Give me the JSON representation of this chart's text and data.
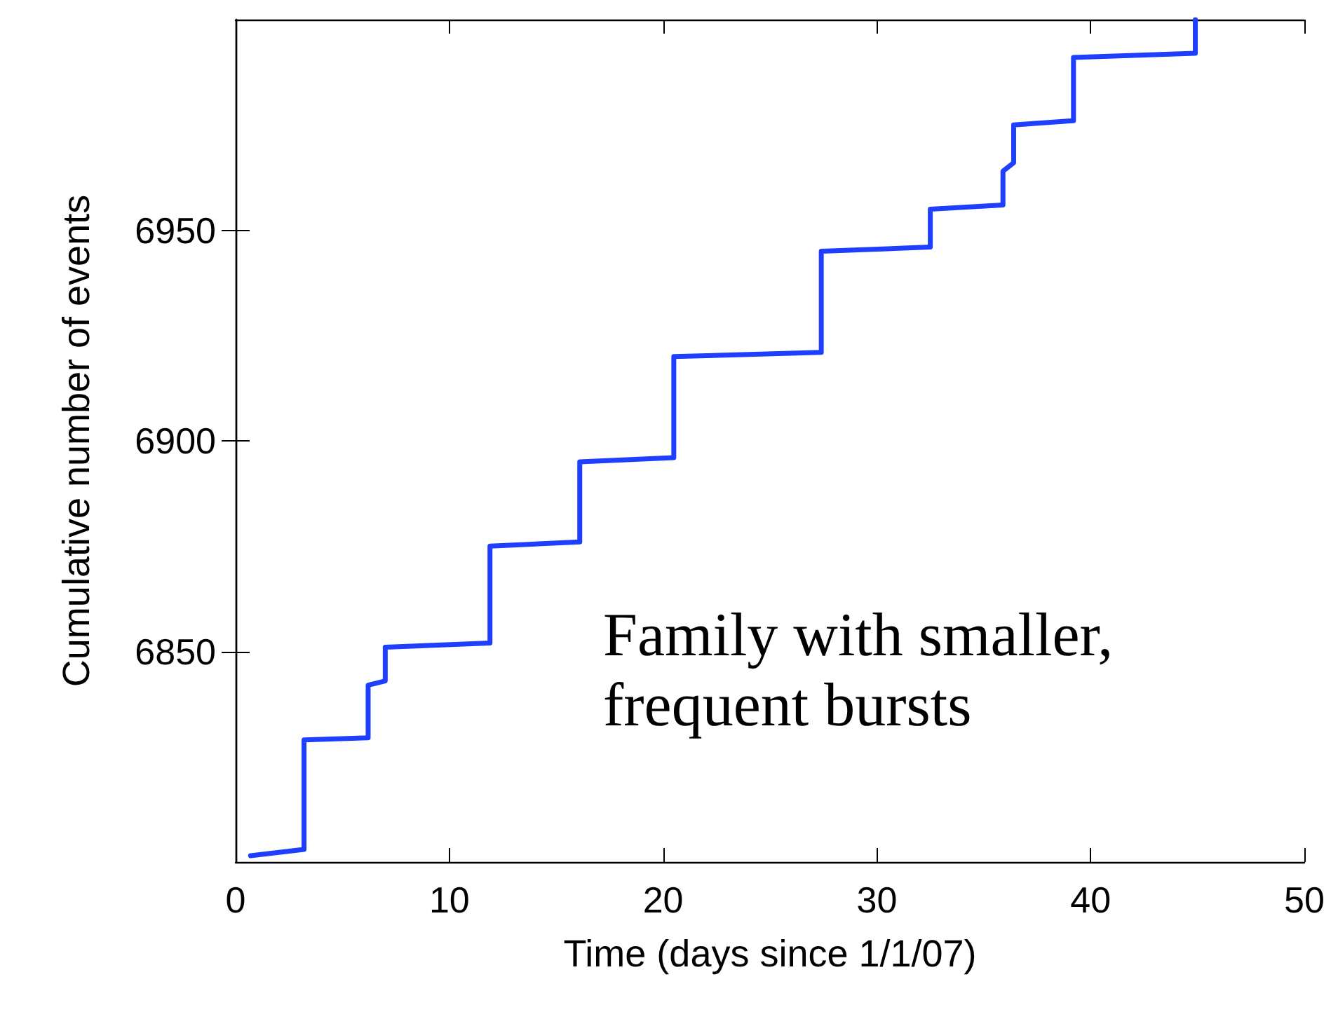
{
  "chart_data": {
    "type": "line",
    "xlabel": "Time (days since 1/1/07)",
    "ylabel": "Cumulative number of events",
    "annotations": [
      "Family with smaller,\nfrequent bursts"
    ],
    "xlim": [
      0,
      50
    ],
    "xticks": [
      0,
      10,
      20,
      30,
      40,
      50
    ],
    "ylim": [
      6800,
      7000
    ],
    "yticks": [
      6850,
      6900,
      6950
    ],
    "grid": false,
    "marker": "none",
    "line_style": "solid",
    "series": [
      {
        "color": "#1f3fff",
        "x": [
          0.7,
          3.2,
          3.2,
          6.2,
          6.2,
          7.0,
          7.0,
          11.9,
          11.9,
          16.1,
          16.1,
          20.5,
          20.5,
          27.4,
          27.4,
          32.5,
          32.5,
          35.9,
          35.9,
          36.4,
          36.4,
          39.2,
          39.2,
          44.9,
          44.9
        ],
        "values": [
          6801.5,
          6803,
          6829,
          6829.5,
          6842,
          6843,
          6851,
          6852,
          6875,
          6876,
          6895,
          6896,
          6920,
          6921,
          6945,
          6946,
          6955,
          6956,
          6964,
          6966,
          6975,
          6976,
          6991,
          6992,
          7000
        ]
      }
    ]
  }
}
